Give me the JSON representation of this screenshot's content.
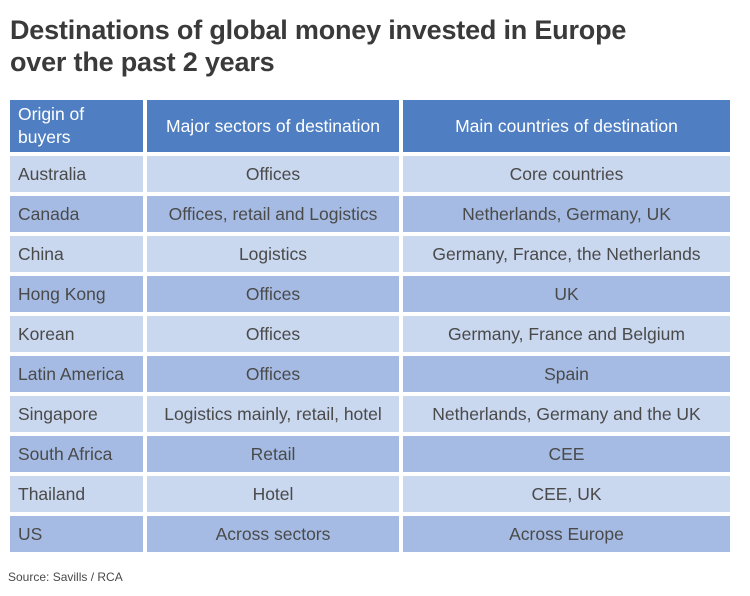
{
  "title_line1": "Destinations of global money invested in Europe",
  "title_line2": "over the past 2 years",
  "colors": {
    "header_bg": "#4f7fc2",
    "row_light": "#c9d7ef",
    "row_dark": "#a5bbe3"
  },
  "table": {
    "headers": {
      "origin": "Origin of buyers",
      "sectors": "Major sectors of destination",
      "countries": "Main countries of destination"
    },
    "rows": [
      {
        "origin": "Australia",
        "sectors": "Offices",
        "countries": "Core countries"
      },
      {
        "origin": "Canada",
        "sectors": "Offices, retail and Logistics",
        "countries": "Netherlands, Germany, UK"
      },
      {
        "origin": "China",
        "sectors": "Logistics",
        "countries": "Germany, France, the Netherlands"
      },
      {
        "origin": "Hong Kong",
        "sectors": "Offices",
        "countries": "UK"
      },
      {
        "origin": "Korean",
        "sectors": "Offices",
        "countries": "Germany, France and Belgium"
      },
      {
        "origin": "Latin America",
        "sectors": "Offices",
        "countries": "Spain"
      },
      {
        "origin": "Singapore",
        "sectors": "Logistics mainly, retail, hotel",
        "countries": "Netherlands, Germany and the UK"
      },
      {
        "origin": "South Africa",
        "sectors": "Retail",
        "countries": "CEE"
      },
      {
        "origin": "Thailand",
        "sectors": "Hotel",
        "countries": "CEE, UK"
      },
      {
        "origin": "US",
        "sectors": "Across sectors",
        "countries": "Across Europe"
      }
    ]
  },
  "source": "Source: Savills / RCA"
}
